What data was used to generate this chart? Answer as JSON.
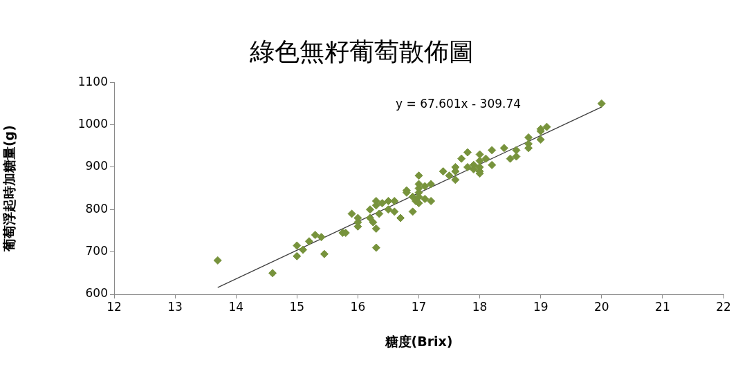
{
  "chart_data": {
    "type": "scatter",
    "title": "綠色無籽葡萄散佈圖",
    "xlabel": "糖度(Brix)",
    "ylabel": "葡萄浮起時加糖量(g)",
    "xlim": [
      12,
      22
    ],
    "xticks": [
      12,
      13,
      14,
      15,
      16,
      17,
      18,
      19,
      20,
      21,
      22
    ],
    "ylim": [
      600,
      1100
    ],
    "yticks": [
      600,
      700,
      800,
      900,
      1000,
      1100
    ],
    "grid": false,
    "legend": false,
    "marker": "diamond",
    "annotations": [
      "y = 67.601x - 309.74"
    ],
    "series": [
      {
        "type": "scatter",
        "color": "#77933c",
        "x": [
          13.7,
          14.6,
          15,
          15,
          15.1,
          15.2,
          15.3,
          15.4,
          15.45,
          15.75,
          15.8,
          15.9,
          16,
          16,
          16,
          16.2,
          16.2,
          16.25,
          16.3,
          16.3,
          16.3,
          16.3,
          16.35,
          16.4,
          16.5,
          16.5,
          16.6,
          16.6,
          16.7,
          16.8,
          16.8,
          16.9,
          16.9,
          16.95,
          17,
          17,
          17,
          17,
          17,
          17,
          17.1,
          17.1,
          17.2,
          17.2,
          17.4,
          17.5,
          17.6,
          17.6,
          17.6,
          17.7,
          17.8,
          17.8,
          17.9,
          17.9,
          18,
          18,
          18,
          18,
          18,
          18.1,
          18.2,
          18.2,
          18.4,
          18.5,
          18.6,
          18.6,
          18.8,
          18.8,
          18.8,
          19,
          19,
          19,
          19.1,
          20
        ],
        "values": [
          680,
          650,
          715,
          690,
          705,
          725,
          740,
          735,
          695,
          745,
          745,
          790,
          780,
          760,
          770,
          800,
          780,
          770,
          820,
          810,
          755,
          710,
          790,
          815,
          820,
          800,
          820,
          795,
          780,
          845,
          840,
          830,
          795,
          820,
          880,
          860,
          850,
          840,
          830,
          815,
          855,
          825,
          860,
          820,
          890,
          880,
          900,
          890,
          870,
          920,
          935,
          900,
          905,
          895,
          930,
          915,
          900,
          890,
          885,
          920,
          940,
          905,
          945,
          920,
          940,
          925,
          970,
          955,
          945,
          990,
          985,
          965,
          995,
          1050
        ]
      },
      {
        "type": "line",
        "color": "#404040",
        "marker": "none",
        "x": [
          13.7,
          20
        ],
        "values": [
          616,
          1042
        ]
      }
    ]
  }
}
